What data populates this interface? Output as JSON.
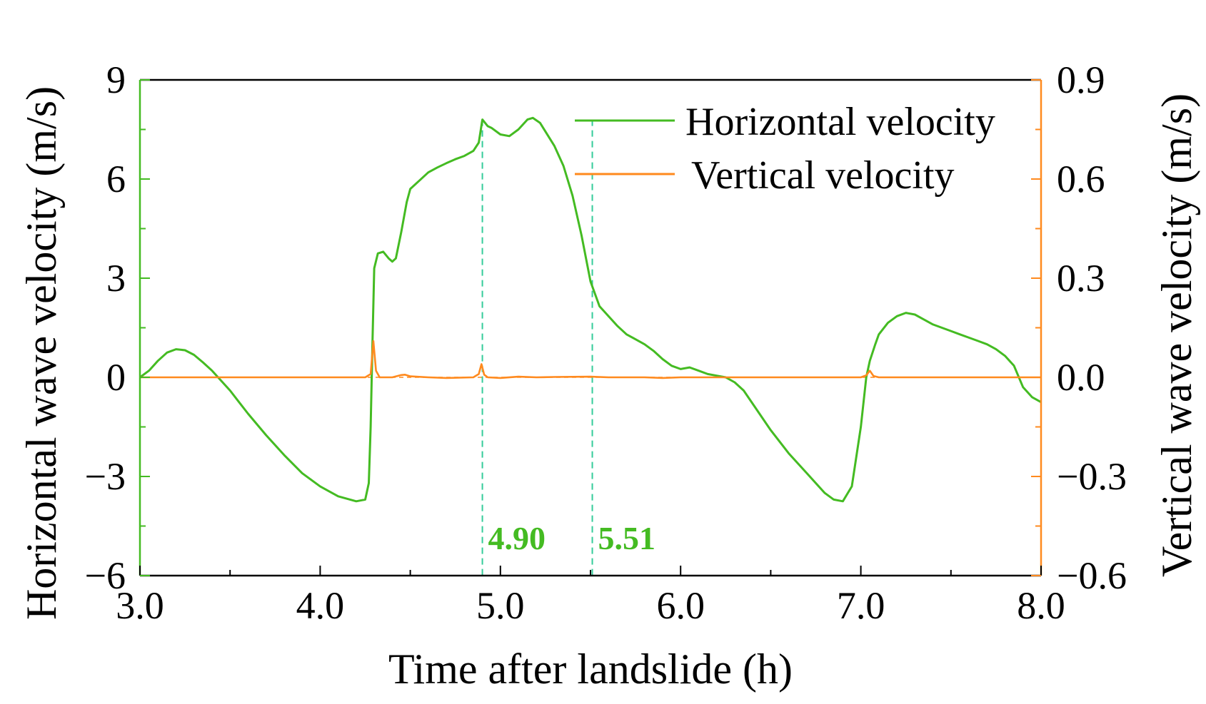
{
  "colors": {
    "horizontal": "#44bb22",
    "vertical": "#ff8a1e",
    "annotation": "#33cc99",
    "annotation_text": "#44bb22",
    "frame": "#000000"
  },
  "chart_data": {
    "type": "line",
    "title": "",
    "xlabel": "Time after landslide (h)",
    "ylabel_left": "Horizontal wave velocity (m/s)",
    "ylabel_right": "Vertical wave velocity (m/s)",
    "xlim": [
      3.0,
      8.0
    ],
    "ylim_left": [
      -6,
      9
    ],
    "ylim_right": [
      -0.6,
      0.9
    ],
    "x_ticks": [
      "3.0",
      "4.0",
      "5.0",
      "6.0",
      "7.0",
      "8.0"
    ],
    "x_tick_values": [
      3.0,
      4.0,
      5.0,
      6.0,
      7.0,
      8.0
    ],
    "y_ticks_left": [
      "−6",
      "−3",
      "0",
      "3",
      "6",
      "9"
    ],
    "y_tick_values_left": [
      -6,
      -3,
      0,
      3,
      6,
      9
    ],
    "y_ticks_right": [
      "−0.6",
      "−0.3",
      "0.0",
      "0.3",
      "0.6",
      "0.9"
    ],
    "y_tick_values_right": [
      -0.6,
      -0.3,
      0.0,
      0.3,
      0.6,
      0.9
    ],
    "legend_position": "top-right",
    "series": [
      {
        "name": "Horizontal velocity",
        "axis": "left",
        "x": [
          3.0,
          3.05,
          3.1,
          3.15,
          3.2,
          3.25,
          3.3,
          3.35,
          3.4,
          3.45,
          3.5,
          3.55,
          3.6,
          3.7,
          3.8,
          3.9,
          4.0,
          4.1,
          4.2,
          4.25,
          4.27,
          4.28,
          4.29,
          4.3,
          4.32,
          4.35,
          4.38,
          4.4,
          4.42,
          4.45,
          4.48,
          4.5,
          4.55,
          4.6,
          4.65,
          4.7,
          4.75,
          4.8,
          4.85,
          4.88,
          4.9,
          4.93,
          4.95,
          5.0,
          5.05,
          5.1,
          5.15,
          5.18,
          5.22,
          5.3,
          5.35,
          5.4,
          5.45,
          5.5,
          5.55,
          5.6,
          5.65,
          5.7,
          5.75,
          5.8,
          5.85,
          5.9,
          5.95,
          6.0,
          6.05,
          6.1,
          6.15,
          6.2,
          6.25,
          6.3,
          6.35,
          6.4,
          6.5,
          6.6,
          6.7,
          6.8,
          6.85,
          6.9,
          6.95,
          7.0,
          7.03,
          7.05,
          7.08,
          7.1,
          7.15,
          7.2,
          7.25,
          7.3,
          7.35,
          7.4,
          7.45,
          7.5,
          7.55,
          7.6,
          7.65,
          7.7,
          7.75,
          7.8,
          7.85,
          7.9,
          7.95,
          8.0
        ],
        "values": [
          0.0,
          0.2,
          0.5,
          0.75,
          0.85,
          0.82,
          0.68,
          0.45,
          0.2,
          -0.1,
          -0.4,
          -0.75,
          -1.1,
          -1.75,
          -2.35,
          -2.9,
          -3.3,
          -3.6,
          -3.75,
          -3.7,
          -3.2,
          -1.5,
          1.0,
          3.3,
          3.75,
          3.8,
          3.6,
          3.5,
          3.6,
          4.4,
          5.3,
          5.7,
          5.95,
          6.2,
          6.35,
          6.48,
          6.6,
          6.7,
          6.85,
          7.1,
          7.8,
          7.6,
          7.55,
          7.35,
          7.3,
          7.5,
          7.8,
          7.85,
          7.7,
          7.0,
          6.4,
          5.5,
          4.3,
          2.9,
          2.15,
          1.85,
          1.55,
          1.3,
          1.15,
          1.0,
          0.8,
          0.55,
          0.35,
          0.25,
          0.3,
          0.2,
          0.1,
          0.05,
          0.0,
          -0.15,
          -0.4,
          -0.8,
          -1.6,
          -2.3,
          -2.9,
          -3.5,
          -3.7,
          -3.75,
          -3.3,
          -1.5,
          0.0,
          0.5,
          1.0,
          1.3,
          1.65,
          1.85,
          1.95,
          1.9,
          1.75,
          1.6,
          1.5,
          1.4,
          1.3,
          1.2,
          1.1,
          1.0,
          0.85,
          0.65,
          0.35,
          -0.3,
          -0.6,
          -0.75
        ]
      },
      {
        "name": "Vertical velocity",
        "axis": "right",
        "x": [
          3.0,
          3.5,
          4.0,
          4.25,
          4.28,
          4.295,
          4.31,
          4.33,
          4.4,
          4.45,
          4.47,
          4.5,
          4.6,
          4.7,
          4.85,
          4.88,
          4.895,
          4.91,
          4.93,
          5.0,
          5.1,
          5.2,
          5.3,
          5.5,
          5.6,
          5.7,
          5.8,
          5.9,
          6.0,
          6.5,
          7.0,
          7.03,
          7.05,
          7.07,
          7.1,
          7.2,
          7.5,
          8.0
        ],
        "values": [
          0.0,
          0.0,
          0.0,
          0.0,
          0.01,
          0.11,
          0.02,
          0.0,
          0.0,
          0.007,
          0.008,
          0.003,
          0.0,
          -0.002,
          0.0,
          0.01,
          0.04,
          0.008,
          0.0,
          -0.002,
          0.002,
          0.0,
          0.001,
          0.002,
          0.0,
          0.0,
          0.0,
          -0.002,
          0.0,
          0.0,
          0.0,
          0.006,
          0.02,
          0.004,
          0.0,
          0.0,
          0.0,
          0.0
        ]
      }
    ],
    "annotations": [
      {
        "x": 4.9,
        "label": "4.90"
      },
      {
        "x": 5.51,
        "label": "5.51"
      }
    ]
  }
}
